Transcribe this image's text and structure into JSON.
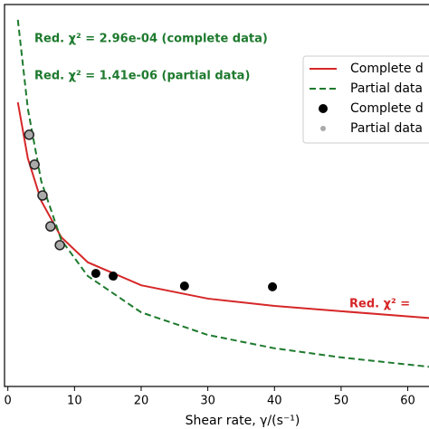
{
  "chart_data": {
    "type": "line",
    "x_label": "Shear rate, γ/(s⁻¹)",
    "xlim": [
      -0.5,
      64
    ],
    "xticks": [
      0,
      10,
      20,
      30,
      40,
      50,
      60
    ],
    "ylim": [
      0,
      100
    ],
    "annotations": [
      {
        "text": "Red. χ² = 2.96e-04 (complete data)",
        "color": "#1e7a2e"
      },
      {
        "text": "Red. χ² = 1.41e-06 (partial data)",
        "color": "#1e7a2e"
      },
      {
        "text": "Red. χ² =",
        "color": "#d62728"
      }
    ],
    "legend": "upper right",
    "series": [
      {
        "name": "Complete d",
        "style": "solid",
        "color": "#d62728",
        "x": [
          1.5,
          3,
          5,
          8,
          12,
          20,
          30,
          40,
          50,
          64
        ],
        "values": [
          74.4,
          59.7,
          48.6,
          39.1,
          32.5,
          26.5,
          23.0,
          21.1,
          19.7,
          17.8
        ]
      },
      {
        "name": "Partial data",
        "style": "dashed",
        "color": "#1e7a2e",
        "x": [
          1.5,
          3,
          5,
          8,
          12,
          20,
          30,
          40,
          50,
          64
        ],
        "values": [
          96,
          72.7,
          53.8,
          38.4,
          28.9,
          19.4,
          13.5,
          10.0,
          7.6,
          5.0
        ]
      },
      {
        "name": "Complete d",
        "style": "marker",
        "color": "#000000",
        "x": [
          13.2,
          15.8,
          26.5,
          39.7
        ],
        "values": [
          29.6,
          28.9,
          26.3,
          26.1
        ]
      },
      {
        "name": "Partial data",
        "style": "marker",
        "color": "#aaaaaa",
        "x": [
          3.2,
          4,
          5.2,
          6.4,
          7.8
        ],
        "values": [
          65.9,
          58.1,
          50.0,
          41.9,
          37.0
        ]
      }
    ]
  }
}
